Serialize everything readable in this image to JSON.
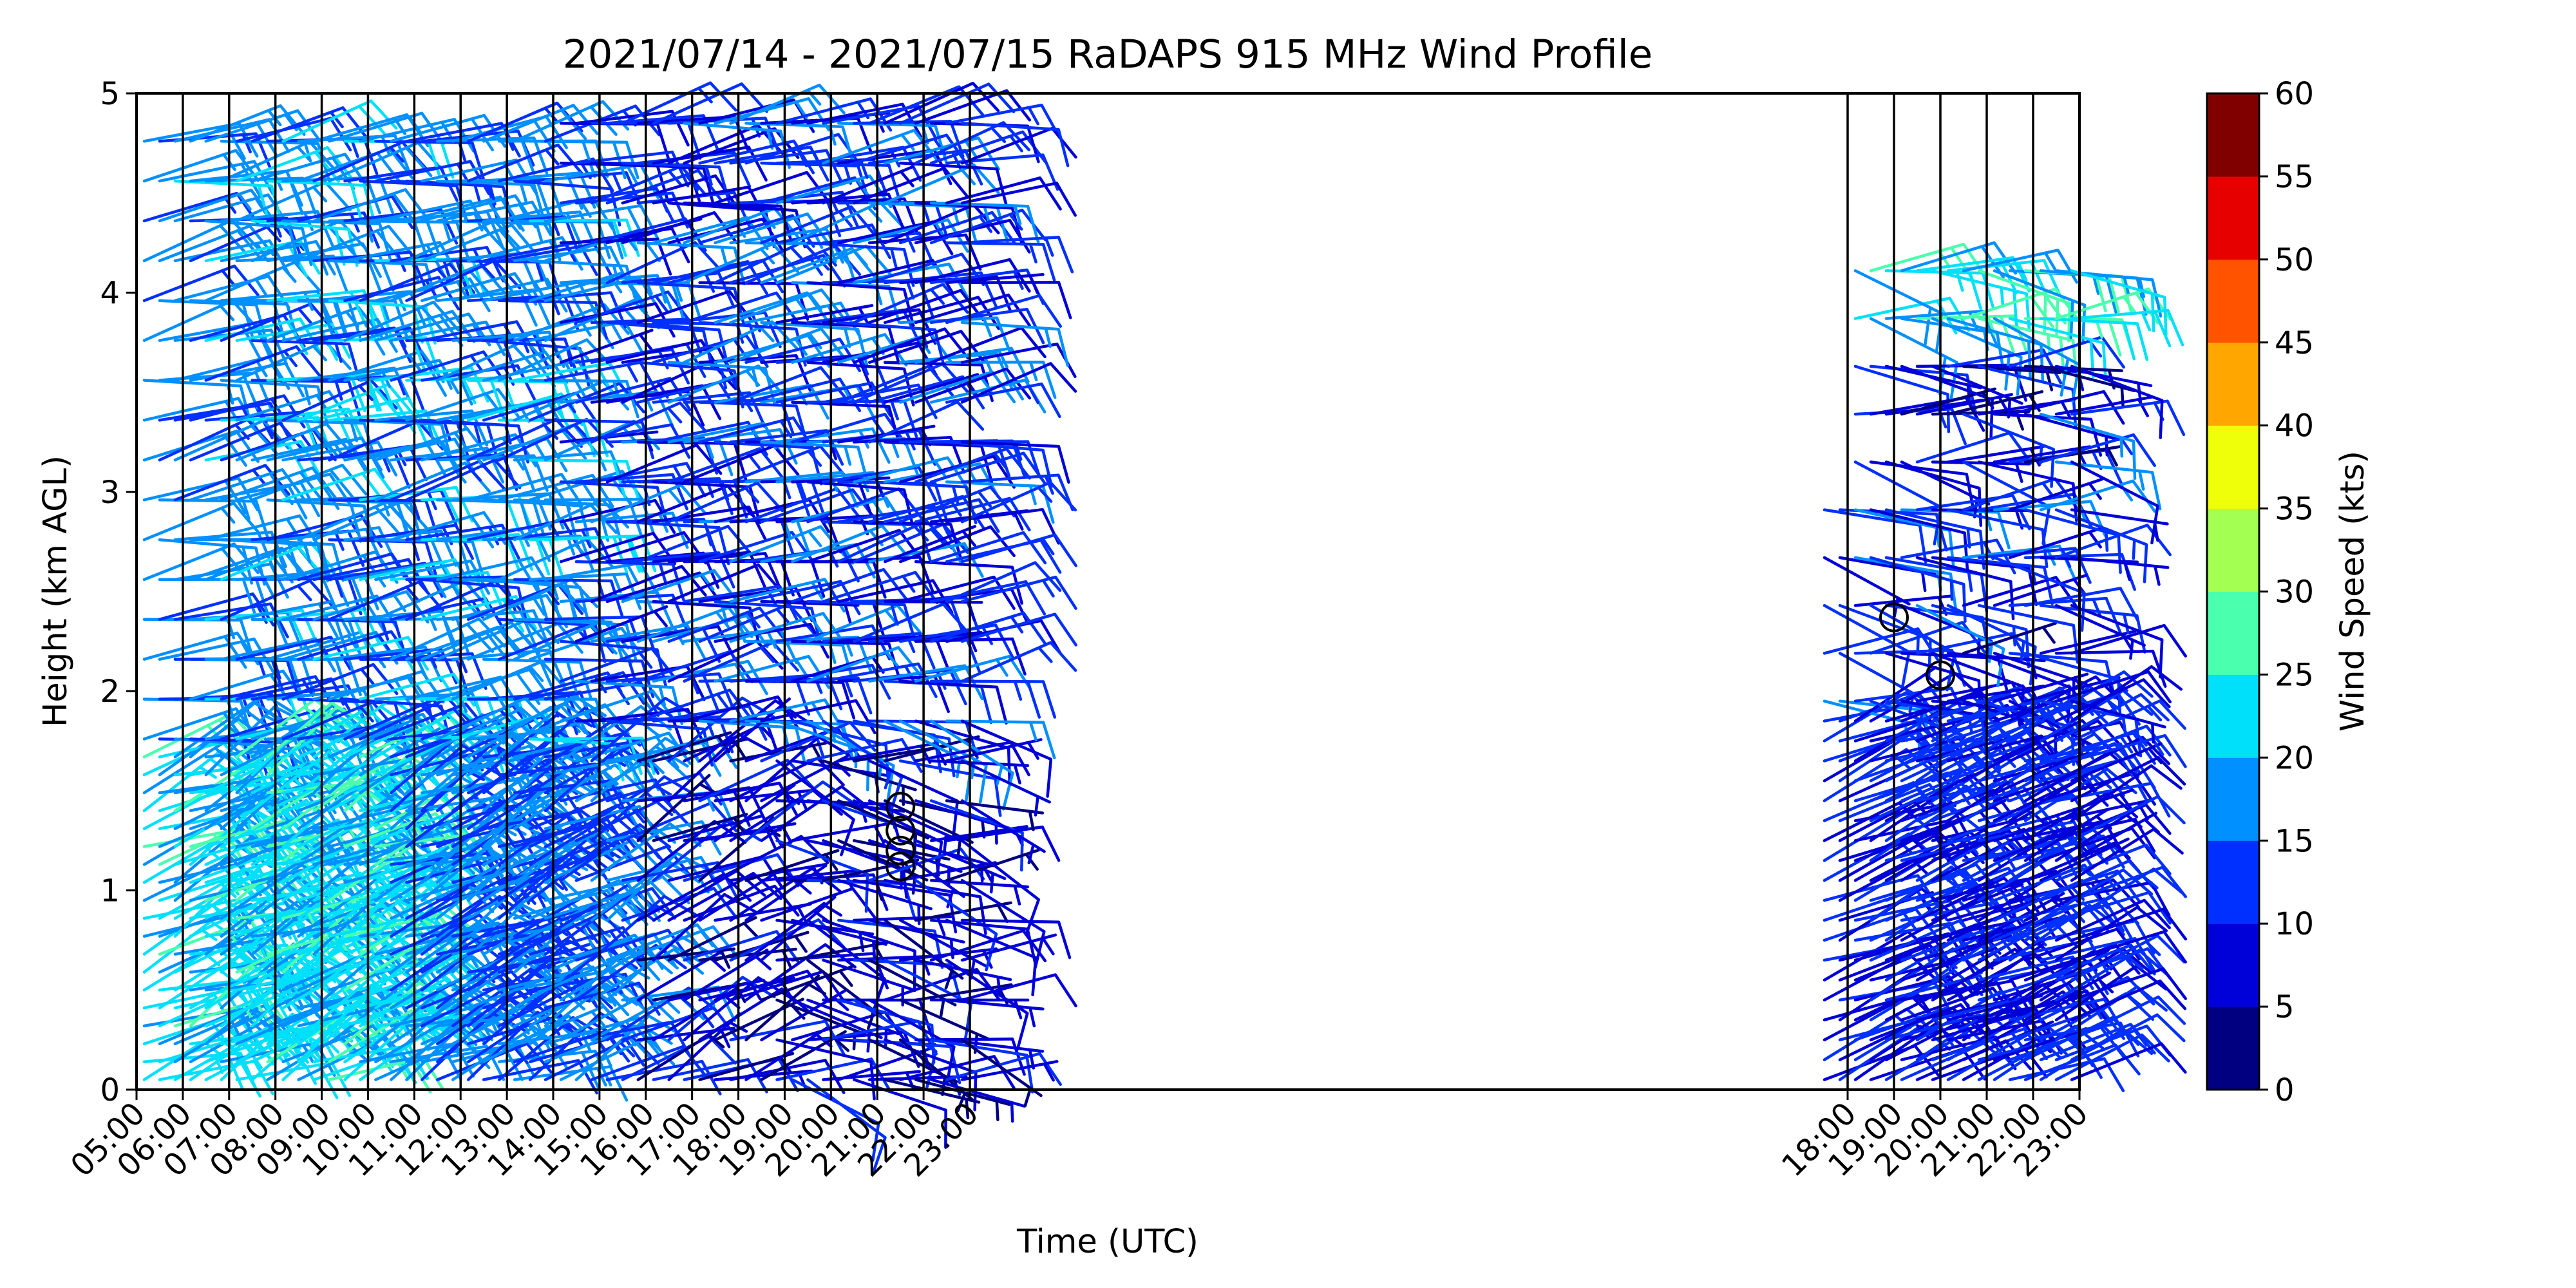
{
  "chart_data": {
    "type": "wind_barbs",
    "title": "2021/07/14 - 2021/07/15 RaDAPS 915 MHz Wind Profile",
    "xlabel": "Time (UTC)",
    "ylabel": "Height (km AGL)",
    "ylim": [
      0,
      5
    ],
    "y_ticks": [
      "0",
      "1",
      "2",
      "3",
      "4",
      "5"
    ],
    "grid": false,
    "segments": [
      {
        "date": "2021/07/14",
        "x_ticks": [
          "05:00",
          "06:00",
          "07:00",
          "08:00",
          "09:00",
          "10:00",
          "11:00",
          "12:00",
          "13:00",
          "14:00",
          "15:00",
          "16:00",
          "17:00",
          "18:00",
          "19:00",
          "20:00",
          "21:00",
          "22:00",
          "23:00"
        ]
      },
      {
        "date": "2021/07/15",
        "x_ticks": [
          "18:00",
          "19:00",
          "20:00",
          "21:00",
          "22:00",
          "23:00"
        ]
      }
    ],
    "calm_markers": [
      {
        "time": "21:30",
        "segment": 0,
        "height_km": 1.12
      },
      {
        "time": "21:30",
        "segment": 0,
        "height_km": 1.2
      },
      {
        "time": "21:30",
        "segment": 0,
        "height_km": 1.3
      },
      {
        "time": "21:30",
        "segment": 0,
        "height_km": 1.42
      },
      {
        "time": "19:00",
        "segment": 1,
        "height_km": 2.37
      },
      {
        "time": "20:00",
        "segment": 1,
        "height_km": 2.08
      }
    ],
    "colorbar": {
      "label": "Wind Speed (kts)",
      "ticks": [
        "0",
        "5",
        "10",
        "15",
        "20",
        "25",
        "30",
        "35",
        "40",
        "45",
        "50",
        "55",
        "60"
      ],
      "bins": [
        {
          "range": [
            0,
            5
          ],
          "color": "#000080"
        },
        {
          "range": [
            5,
            10
          ],
          "color": "#0000d9"
        },
        {
          "range": [
            10,
            15
          ],
          "color": "#0030ff"
        },
        {
          "range": [
            15,
            20
          ],
          "color": "#0090ff"
        },
        {
          "range": [
            20,
            25
          ],
          "color": "#00e0fb"
        },
        {
          "range": [
            25,
            30
          ],
          "color": "#4affad"
        },
        {
          "range": [
            30,
            35
          ],
          "color": "#a4ff53"
        },
        {
          "range": [
            35,
            40
          ],
          "color": "#eeff09"
        },
        {
          "range": [
            40,
            45
          ],
          "color": "#ffa700"
        },
        {
          "range": [
            45,
            50
          ],
          "color": "#ff5300"
        },
        {
          "range": [
            50,
            55
          ],
          "color": "#e60000"
        },
        {
          "range": [
            55,
            60
          ],
          "color": "#800000"
        }
      ]
    }
  }
}
